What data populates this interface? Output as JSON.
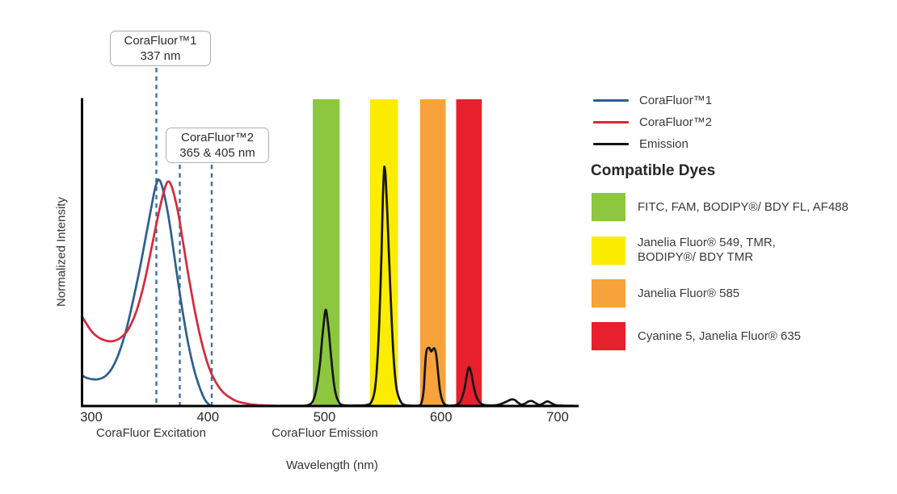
{
  "chart_data": {
    "type": "line",
    "xlabel": "Wavelength (nm)",
    "ylabel": "Normalized Intensity",
    "x_ticks": [
      300,
      400,
      500,
      600,
      700
    ],
    "xlim": [
      292,
      718
    ],
    "ylim": [
      0,
      1.05
    ],
    "grid": false,
    "axis_section_labels": [
      {
        "label": "CoraFluor Excitation"
      },
      {
        "label": "CoraFluor Emission"
      }
    ],
    "annotations": [
      {
        "title": "CoraFluor™1",
        "subtitle": "337 nm",
        "lines_nm": [
          337
        ]
      },
      {
        "title": "CoraFluor™2",
        "subtitle": "365 & 405 nm",
        "lines_nm": [
          365,
          405
        ]
      }
    ],
    "filter_bands": [
      {
        "name": "green-band",
        "color": "#8DC63F",
        "range_nm": [
          490,
          513
        ]
      },
      {
        "name": "yellow-band",
        "color": "#FBEC00",
        "range_nm": [
          539,
          563
        ]
      },
      {
        "name": "orange-band",
        "color": "#F8A23B",
        "range_nm": [
          582,
          604
        ]
      },
      {
        "name": "red-band",
        "color": "#E81F2D",
        "range_nm": [
          613,
          635
        ]
      }
    ],
    "series": [
      {
        "name": "CoraFluor™1",
        "color": "#2D5F8E",
        "points": [
          [
            292,
            0.128
          ],
          [
            296,
            0.118
          ],
          [
            301,
            0.112
          ],
          [
            306,
            0.112
          ],
          [
            312,
            0.125
          ],
          [
            318,
            0.16
          ],
          [
            324,
            0.225
          ],
          [
            330,
            0.32
          ],
          [
            336,
            0.445
          ],
          [
            342,
            0.585
          ],
          [
            347,
            0.715
          ],
          [
            351,
            0.82
          ],
          [
            354,
            0.895
          ],
          [
            356.5,
            0.94
          ],
          [
            358,
            0.947
          ],
          [
            360,
            0.93
          ],
          [
            363,
            0.875
          ],
          [
            367,
            0.77
          ],
          [
            371,
            0.635
          ],
          [
            375,
            0.5
          ],
          [
            379,
            0.375
          ],
          [
            383,
            0.265
          ],
          [
            387,
            0.175
          ],
          [
            391,
            0.105
          ],
          [
            395,
            0.052
          ],
          [
            398,
            0.022
          ],
          [
            401,
            0.006
          ],
          [
            403,
            0.0
          ]
        ]
      },
      {
        "name": "CoraFluor™2",
        "color": "#D7293B",
        "points": [
          [
            292,
            0.375
          ],
          [
            297,
            0.335
          ],
          [
            302,
            0.303
          ],
          [
            308,
            0.282
          ],
          [
            314,
            0.272
          ],
          [
            319,
            0.272
          ],
          [
            325,
            0.285
          ],
          [
            331,
            0.315
          ],
          [
            337,
            0.375
          ],
          [
            342,
            0.45
          ],
          [
            347,
            0.55
          ],
          [
            352,
            0.67
          ],
          [
            357,
            0.79
          ],
          [
            361,
            0.875
          ],
          [
            364,
            0.925
          ],
          [
            366,
            0.94
          ],
          [
            368,
            0.93
          ],
          [
            371,
            0.885
          ],
          [
            375,
            0.795
          ],
          [
            379,
            0.675
          ],
          [
            383,
            0.555
          ],
          [
            387,
            0.445
          ],
          [
            391,
            0.345
          ],
          [
            395,
            0.26
          ],
          [
            399,
            0.19
          ],
          [
            403,
            0.136
          ],
          [
            408,
            0.09
          ],
          [
            413,
            0.058
          ],
          [
            419,
            0.035
          ],
          [
            425,
            0.02
          ],
          [
            432,
            0.011
          ],
          [
            440,
            0.005
          ],
          [
            450,
            0.002
          ],
          [
            460,
            0.001
          ],
          [
            466,
            0.0
          ]
        ]
      },
      {
        "name": "Emission",
        "color": "#151515",
        "points": [
          [
            462,
            0.001
          ],
          [
            480,
            0.001
          ],
          [
            486,
            0.004
          ],
          [
            490,
            0.02
          ],
          [
            493,
            0.07
          ],
          [
            496,
            0.17
          ],
          [
            498,
            0.28
          ],
          [
            500,
            0.375
          ],
          [
            501,
            0.402
          ],
          [
            502,
            0.385
          ],
          [
            504,
            0.3
          ],
          [
            506,
            0.19
          ],
          [
            508,
            0.1
          ],
          [
            510,
            0.045
          ],
          [
            513,
            0.012
          ],
          [
            517,
            0.003
          ],
          [
            528,
            0.002
          ],
          [
            536,
            0.004
          ],
          [
            540,
            0.015
          ],
          [
            543,
            0.06
          ],
          [
            545,
            0.16
          ],
          [
            547,
            0.35
          ],
          [
            549,
            0.65
          ],
          [
            550,
            0.85
          ],
          [
            551,
            0.98
          ],
          [
            551.5,
            1.0
          ],
          [
            552.5,
            0.96
          ],
          [
            554,
            0.8
          ],
          [
            556,
            0.55
          ],
          [
            558,
            0.32
          ],
          [
            560,
            0.16
          ],
          [
            562,
            0.07
          ],
          [
            565,
            0.022
          ],
          [
            568,
            0.006
          ],
          [
            573,
            0.002
          ],
          [
            580,
            0.002
          ],
          [
            583,
            0.01
          ],
          [
            585,
            0.06
          ],
          [
            586,
            0.14
          ],
          [
            587,
            0.21
          ],
          [
            588,
            0.238
          ],
          [
            590,
            0.243
          ],
          [
            591.5,
            0.228
          ],
          [
            593,
            0.238
          ],
          [
            594.5,
            0.24
          ],
          [
            596,
            0.21
          ],
          [
            597.5,
            0.14
          ],
          [
            599,
            0.07
          ],
          [
            601,
            0.025
          ],
          [
            603,
            0.008
          ],
          [
            606,
            0.002
          ],
          [
            610,
            0.002
          ],
          [
            614,
            0.006
          ],
          [
            617,
            0.022
          ],
          [
            620,
            0.07
          ],
          [
            622,
            0.125
          ],
          [
            623.5,
            0.158
          ],
          [
            624.5,
            0.16
          ],
          [
            626,
            0.135
          ],
          [
            628,
            0.085
          ],
          [
            630,
            0.044
          ],
          [
            633,
            0.016
          ],
          [
            636,
            0.006
          ],
          [
            640,
            0.003
          ],
          [
            646,
            0.003
          ],
          [
            651,
            0.008
          ],
          [
            656,
            0.018
          ],
          [
            660,
            0.027
          ],
          [
            663,
            0.026
          ],
          [
            666,
            0.014
          ],
          [
            669,
            0.006
          ],
          [
            672,
            0.01
          ],
          [
            675,
            0.019
          ],
          [
            678,
            0.021
          ],
          [
            681,
            0.013
          ],
          [
            684,
            0.005
          ],
          [
            687,
            0.009
          ],
          [
            690,
            0.018
          ],
          [
            692,
            0.019
          ],
          [
            695,
            0.011
          ],
          [
            698,
            0.004
          ],
          [
            702,
            0.002
          ],
          [
            708,
            0.001
          ],
          [
            714,
            0.001
          ]
        ]
      }
    ],
    "legend_position": "right"
  },
  "legend": {
    "items": [
      {
        "label": "CoraFluor™1",
        "color": "#2D5F8E"
      },
      {
        "label": "CoraFluor™2",
        "color": "#D7293B"
      },
      {
        "label": "Emission",
        "color": "#151515"
      }
    ]
  },
  "compatible_dyes": {
    "heading": "Compatible Dyes",
    "items": [
      {
        "color": "#8DC63F",
        "label": "FITC, FAM, BODIPY®/ BDY FL, AF488"
      },
      {
        "color": "#FBEC00",
        "label": "Janelia Fluor® 549, TMR,\nBODIPY®/ BDY TMR"
      },
      {
        "color": "#F8A23B",
        "label": "Janelia Fluor® 585"
      },
      {
        "color": "#E81F2D",
        "label": "Cyanine 5, Janelia Fluor® 635"
      }
    ]
  },
  "colors": {
    "dashed_guides": "#3E70A3",
    "axis": "#000000",
    "text": "#2e2e30"
  }
}
